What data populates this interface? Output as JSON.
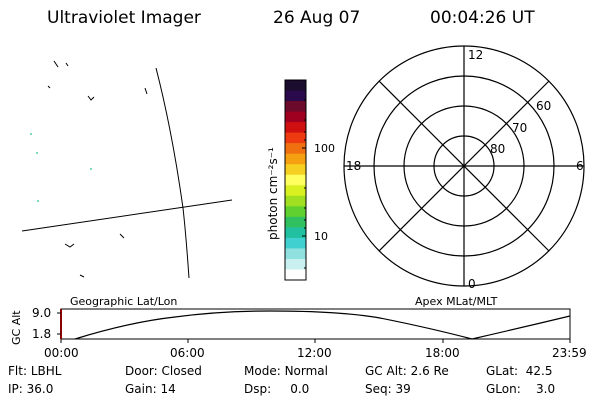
{
  "header": {
    "instrument": "Ultraviolet Imager",
    "date": "26 Aug 07",
    "time": "00:04:26 UT"
  },
  "colorbar": {
    "label": "photon cm⁻²s⁻¹",
    "ticks": [
      "100",
      "10"
    ],
    "colors": [
      "#1a0d2e",
      "#2a0a4a",
      "#6b0a2a",
      "#a00020",
      "#d01010",
      "#ee3a10",
      "#f07010",
      "#f5a010",
      "#f5d020",
      "#ffff60",
      "#d8f020",
      "#a0e020",
      "#60d030",
      "#30c060",
      "#20c0a0",
      "#40d0d0",
      "#90e0e0",
      "#c8f0f0",
      "#ffffff"
    ]
  },
  "polar": {
    "mlt_labels": {
      "top": "12",
      "left": "18",
      "right": "6",
      "bottom": "0"
    },
    "lat_labels": [
      "60",
      "70",
      "80"
    ]
  },
  "panel_labels": {
    "left": "Geographic Lat/Lon",
    "right": "Apex MLat/MLT"
  },
  "altitude_plot": {
    "ylabel": "GC Alt",
    "y_ticks": [
      "9.0",
      "1.8"
    ],
    "x_ticks": [
      "00:00",
      "06:00",
      "12:00",
      "18:00",
      "23:59"
    ]
  },
  "status": {
    "row1": [
      {
        "label": "Flt:",
        "value": "LBHL"
      },
      {
        "label": "Door:",
        "value": "Closed"
      },
      {
        "label": "Mode:",
        "value": "Normal"
      },
      {
        "label": "GC Alt:",
        "value": "2.6 Re"
      },
      {
        "label": "GLat:",
        "value": "42.5"
      }
    ],
    "row2": [
      {
        "label": "IP:",
        "value": "36.0"
      },
      {
        "label": "Gain:",
        "value": "14"
      },
      {
        "label": "Dsp:",
        "value": "0.0"
      },
      {
        "label": "Seq:",
        "value": "39"
      },
      {
        "label": "GLon:",
        "value": "3.0"
      }
    ]
  }
}
